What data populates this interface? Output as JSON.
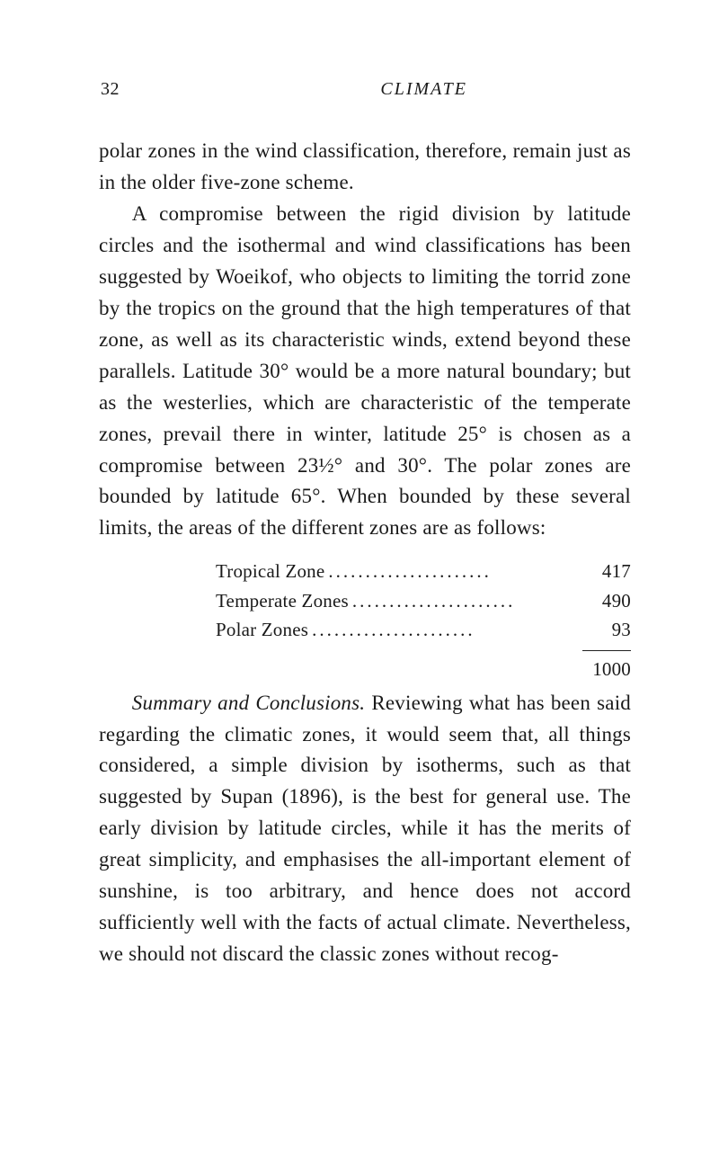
{
  "header": {
    "page_number": "32",
    "running_head": "CLIMATE"
  },
  "paragraphs": {
    "p1": "polar zones in the wind classification, therefore, re­main just as in the older five-zone scheme.",
    "p2": "A compromise between the rigid division by lati­tude circles and the isothermal and wind classifica­tions has been suggested by Woeikof, who objects to limiting the torrid zone by the tropics on the ground that the high temperatures of that zone, as well as its characteristic winds, extend beyond these parallels. Latitude 30° would be a more natural boundary; but as the westerlies, which are characteristic of the tem­perate zones, prevail there in winter, latitude 25° is chosen as a compromise between 23½° and 30°. The polar zones are bounded by latitude 65°. When bounded by these several limits, the areas of the dif­ferent zones are as follows:",
    "p3_title": "Summary and Conclusions.",
    "p3_body": "  Reviewing what has been said regarding the climatic zones, it would seem that, all things considered, a simple division by iso­therms, such as that suggested by Supan (1896), is the best for general use. The early division by lati­tude circles, while it has the merits of great simplicity, and emphasises the all-important element of sunshine, is too arbitrary, and hence does not accord sufficiently well with the facts of actual climate. Nevertheless, we should not discard the classic zones without recog-"
  },
  "zone_table": {
    "rows": [
      {
        "label": "Tropical Zone",
        "value": "417"
      },
      {
        "label": "Temperate Zones",
        "value": "490"
      },
      {
        "label": "Polar Zones",
        "value": "93"
      }
    ],
    "total": "1000",
    "dots": "......................"
  }
}
